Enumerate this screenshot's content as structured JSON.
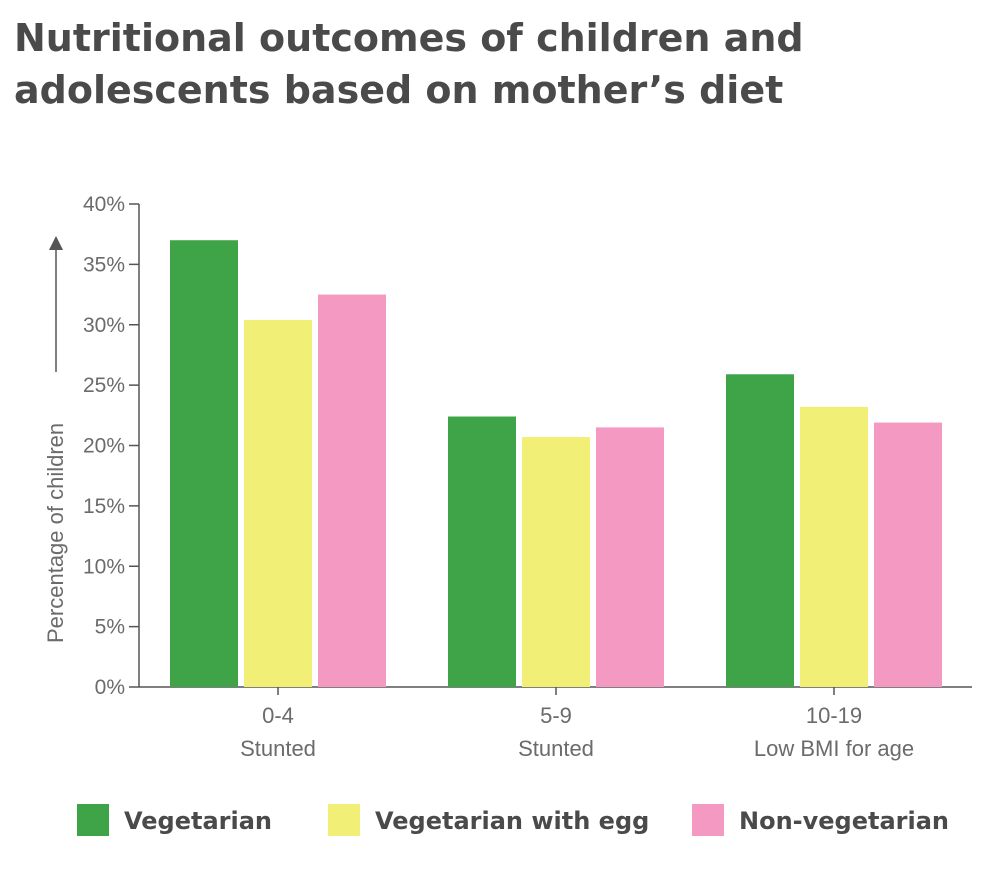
{
  "title": "Nutritional outcomes of children and adolescents based on mother’s diet",
  "chart_data": {
    "type": "bar",
    "title": "Nutritional outcomes of children and adolescents based on mother’s diet",
    "xlabel": "",
    "ylabel": "Percentage of children",
    "ylim": [
      0,
      40
    ],
    "yticks": [
      "0%",
      "5%",
      "10%",
      "15%",
      "20%",
      "25%",
      "30%",
      "35%",
      "40%"
    ],
    "categories": [
      {
        "line1": "0-4",
        "line2": "Stunted"
      },
      {
        "line1": "5-9",
        "line2": "Stunted"
      },
      {
        "line1": "10-19",
        "line2": "Low BMI for age"
      }
    ],
    "series": [
      {
        "name": "Vegetarian",
        "color": "#3ea447",
        "values": [
          37.0,
          22.4,
          25.9
        ]
      },
      {
        "name": "Vegetarian with egg",
        "color": "#f2ef77",
        "values": [
          30.4,
          20.7,
          23.2
        ]
      },
      {
        "name": "Non-vegetarian",
        "color": "#f49ac2",
        "values": [
          32.5,
          21.5,
          21.9
        ]
      }
    ],
    "legend_position": "bottom",
    "grid": false
  }
}
